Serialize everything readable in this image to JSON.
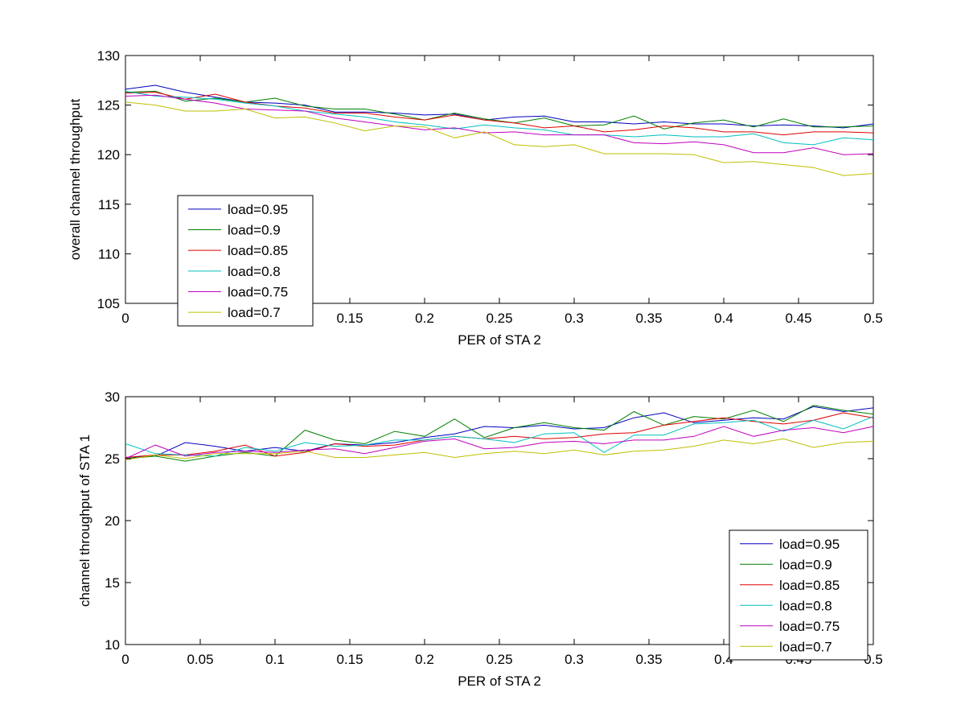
{
  "chart_data": [
    {
      "type": "line",
      "title": "",
      "xlabel": "PER of STA 2",
      "ylabel": "overall channel throughput",
      "xlim": [
        0,
        0.5
      ],
      "ylim": [
        105,
        130
      ],
      "xticks": [
        0,
        0.05,
        0.1,
        0.15,
        0.2,
        0.25,
        0.3,
        0.35,
        0.4,
        0.45,
        0.5
      ],
      "xtick_labels": [
        "0",
        "",
        "",
        "0.15",
        "0.2",
        "0.25",
        "0.3",
        "0.35",
        "0.4",
        "0.45",
        "0.5"
      ],
      "yticks": [
        105,
        110,
        115,
        120,
        125,
        130
      ],
      "ytick_labels": [
        "105",
        "110",
        "115",
        "120",
        "125",
        "130"
      ],
      "grid": false,
      "legend_position": "bottom-left",
      "x": [
        0,
        0.02,
        0.04,
        0.06,
        0.08,
        0.1,
        0.12,
        0.14,
        0.16,
        0.18,
        0.2,
        0.22,
        0.24,
        0.26,
        0.28,
        0.3,
        0.32,
        0.34,
        0.36,
        0.38,
        0.4,
        0.42,
        0.44,
        0.46,
        0.48,
        0.5
      ],
      "series": [
        {
          "name": "load=0.95",
          "color": "#0000bf",
          "values": [
            126.6,
            127.0,
            126.3,
            125.8,
            125.3,
            125.2,
            125.0,
            124.3,
            124.3,
            124.2,
            124.0,
            124.1,
            123.5,
            123.8,
            123.9,
            123.3,
            123.3,
            123.1,
            123.3,
            123.1,
            123.1,
            122.9,
            123.0,
            122.9,
            122.7,
            123.1
          ]
        },
        {
          "name": "load=0.9",
          "color": "#007f00",
          "values": [
            126.3,
            126.4,
            125.4,
            125.7,
            125.3,
            125.7,
            124.9,
            124.6,
            124.6,
            124.1,
            123.5,
            124.2,
            123.6,
            123.2,
            123.7,
            122.9,
            123.0,
            123.9,
            122.6,
            123.2,
            123.5,
            122.8,
            123.6,
            122.8,
            122.8,
            122.9
          ]
        },
        {
          "name": "load=0.85",
          "color": "#df0000",
          "values": [
            126.2,
            126.3,
            125.6,
            126.1,
            125.3,
            124.9,
            124.7,
            124.2,
            124.2,
            123.8,
            123.5,
            124.0,
            123.5,
            123.2,
            122.7,
            122.9,
            122.3,
            122.5,
            122.9,
            122.7,
            122.3,
            122.3,
            122.0,
            122.3,
            122.3,
            122.2
          ]
        },
        {
          "name": "load=0.8",
          "color": "#00bfbf",
          "values": [
            126.4,
            125.9,
            125.8,
            125.6,
            125.2,
            124.9,
            124.4,
            124.1,
            123.8,
            123.3,
            123.0,
            122.6,
            123.0,
            122.7,
            122.5,
            122.0,
            122.0,
            121.8,
            122.0,
            121.8,
            121.8,
            122.1,
            121.2,
            121.0,
            121.7,
            121.5
          ]
        },
        {
          "name": "load=0.75",
          "color": "#bf00bf",
          "values": [
            125.9,
            126.0,
            125.6,
            125.2,
            124.6,
            124.5,
            124.4,
            123.7,
            123.3,
            122.9,
            122.5,
            122.7,
            122.2,
            122.3,
            122.0,
            122.0,
            122.0,
            121.2,
            121.1,
            121.3,
            121.0,
            120.2,
            120.2,
            120.7,
            120.0,
            120.1
          ]
        },
        {
          "name": "load=0.7",
          "color": "#bfbf00",
          "values": [
            125.3,
            125.0,
            124.4,
            124.4,
            124.6,
            123.7,
            123.8,
            123.2,
            122.4,
            122.9,
            122.8,
            121.7,
            122.3,
            121.0,
            120.8,
            121.0,
            120.1,
            120.1,
            120.1,
            120.0,
            119.2,
            119.3,
            119.0,
            118.7,
            117.9,
            118.1
          ]
        }
      ]
    },
    {
      "type": "line",
      "title": "",
      "xlabel": "PER of STA 2",
      "ylabel": "channel throughput of STA 1",
      "xlim": [
        0,
        0.5
      ],
      "ylim": [
        10,
        30
      ],
      "xticks": [
        0,
        0.05,
        0.1,
        0.15,
        0.2,
        0.25,
        0.3,
        0.35,
        0.4,
        0.45,
        0.5
      ],
      "xtick_labels": [
        "0",
        "0.05",
        "0.1",
        "0.15",
        "0.2",
        "0.25",
        "0.3",
        "0.35",
        "0.4",
        "0.45",
        "0.5"
      ],
      "yticks": [
        10,
        15,
        20,
        25,
        30
      ],
      "ytick_labels": [
        "10",
        "15",
        "20",
        "25",
        "30"
      ],
      "grid": false,
      "legend_position": "bottom-right",
      "x": [
        0,
        0.02,
        0.04,
        0.06,
        0.08,
        0.1,
        0.12,
        0.14,
        0.16,
        0.18,
        0.2,
        0.22,
        0.24,
        0.26,
        0.28,
        0.3,
        0.32,
        0.34,
        0.36,
        0.38,
        0.4,
        0.42,
        0.44,
        0.46,
        0.48,
        0.5
      ],
      "series": [
        {
          "name": "load=0.95",
          "color": "#0000bf",
          "values": [
            25.1,
            25.2,
            26.3,
            26.0,
            25.6,
            25.9,
            25.6,
            26.2,
            26.1,
            26.3,
            26.7,
            27.0,
            27.6,
            27.5,
            27.7,
            27.4,
            27.5,
            28.3,
            28.7,
            27.9,
            28.1,
            28.3,
            28.2,
            29.2,
            28.8,
            29.1
          ]
        },
        {
          "name": "load=0.9",
          "color": "#007f00",
          "values": [
            25.0,
            25.2,
            24.8,
            25.2,
            25.5,
            25.2,
            27.3,
            26.5,
            26.2,
            27.2,
            26.8,
            28.2,
            26.7,
            27.5,
            27.9,
            27.5,
            27.3,
            28.8,
            27.7,
            28.4,
            28.2,
            28.9,
            28.0,
            29.3,
            28.9,
            28.6
          ]
        },
        {
          "name": "load=0.85",
          "color": "#df0000",
          "values": [
            25.1,
            25.3,
            25.3,
            25.6,
            26.1,
            25.2,
            25.5,
            26.2,
            26.0,
            26.1,
            26.5,
            26.8,
            26.6,
            26.8,
            26.6,
            26.7,
            27.0,
            27.1,
            27.7,
            28.0,
            28.3,
            28.0,
            27.8,
            28.1,
            28.7,
            28.3
          ]
        },
        {
          "name": "load=0.8",
          "color": "#00bfbf",
          "values": [
            26.2,
            25.4,
            25.3,
            25.2,
            25.9,
            25.6,
            26.3,
            26.0,
            26.1,
            26.5,
            26.5,
            26.8,
            26.6,
            26.3,
            27.0,
            27.1,
            25.5,
            26.9,
            26.9,
            27.8,
            27.9,
            28.1,
            27.2,
            28.1,
            27.4,
            28.4
          ]
        },
        {
          "name": "load=0.75",
          "color": "#bf00bf",
          "values": [
            25.0,
            26.1,
            25.2,
            25.5,
            25.6,
            25.5,
            25.7,
            25.8,
            25.4,
            25.9,
            26.4,
            26.6,
            25.8,
            25.9,
            26.3,
            26.4,
            26.2,
            26.5,
            26.5,
            26.8,
            27.6,
            26.8,
            27.3,
            27.5,
            27.1,
            27.6
          ]
        },
        {
          "name": "load=0.7",
          "color": "#bfbf00",
          "values": [
            24.9,
            25.3,
            25.0,
            25.4,
            25.4,
            25.4,
            25.6,
            25.1,
            25.1,
            25.3,
            25.5,
            25.1,
            25.4,
            25.6,
            25.4,
            25.7,
            25.3,
            25.6,
            25.7,
            26.0,
            26.5,
            26.2,
            26.6,
            25.9,
            26.3,
            26.4
          ]
        }
      ]
    }
  ]
}
